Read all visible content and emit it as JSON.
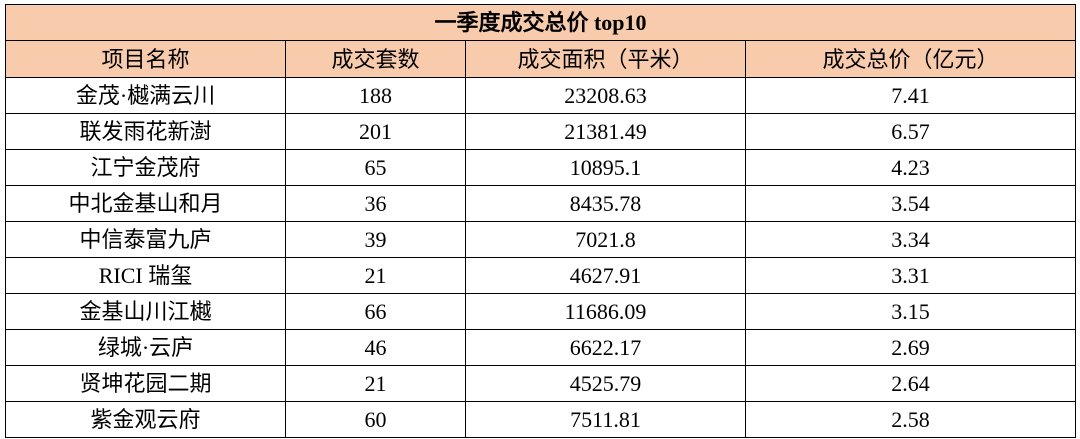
{
  "table": {
    "title": "一季度成交总价 top10",
    "header": [
      "项目名称",
      "成交套数",
      "成交面积（平米）",
      "成交总价（亿元）"
    ],
    "rows": [
      [
        "金茂·樾满云川",
        "188",
        "23208.63",
        "7.41"
      ],
      [
        "联发雨花新澍",
        "201",
        "21381.49",
        "6.57"
      ],
      [
        "江宁金茂府",
        "65",
        "10895.1",
        "4.23"
      ],
      [
        "中北金基山和月",
        "36",
        "8435.78",
        "3.54"
      ],
      [
        "中信泰富九庐",
        "39",
        "7021.8",
        "3.34"
      ],
      [
        "RICI 瑞玺",
        "21",
        "4627.91",
        "3.31"
      ],
      [
        "金基山川江樾",
        "66",
        "11686.09",
        "3.15"
      ],
      [
        "绿城·云庐",
        "46",
        "6622.17",
        "2.69"
      ],
      [
        "贤坤花园二期",
        "21",
        "4525.79",
        "2.64"
      ],
      [
        "紫金观云府",
        "60",
        "7511.81",
        "2.58"
      ]
    ]
  }
}
